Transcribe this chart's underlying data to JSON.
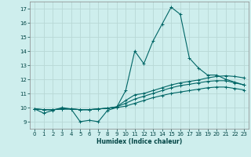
{
  "xlabel": "Humidex (Indice chaleur)",
  "xlim": [
    -0.5,
    23.5
  ],
  "ylim": [
    8.5,
    17.5
  ],
  "yticks": [
    9,
    10,
    11,
    12,
    13,
    14,
    15,
    16,
    17
  ],
  "xticks": [
    0,
    1,
    2,
    3,
    4,
    5,
    6,
    7,
    8,
    9,
    10,
    11,
    12,
    13,
    14,
    15,
    16,
    17,
    18,
    19,
    20,
    21,
    22,
    23
  ],
  "bg_color": "#ceeeed",
  "grid_color": "#b8d8d6",
  "line_color": "#006666",
  "line1_y": [
    9.9,
    9.6,
    9.8,
    10.0,
    9.9,
    9.0,
    9.1,
    9.0,
    9.8,
    10.0,
    11.2,
    14.0,
    13.1,
    14.7,
    15.9,
    17.1,
    16.6,
    13.5,
    12.8,
    12.3,
    12.3,
    12.0,
    11.8,
    11.6
  ],
  "line2_y": [
    9.9,
    9.85,
    9.85,
    9.9,
    9.9,
    9.85,
    9.85,
    9.9,
    9.95,
    10.05,
    10.5,
    10.9,
    11.0,
    11.2,
    11.4,
    11.6,
    11.75,
    11.85,
    11.95,
    12.1,
    12.2,
    12.25,
    12.2,
    12.1
  ],
  "line3_y": [
    9.9,
    9.85,
    9.85,
    9.9,
    9.9,
    9.85,
    9.85,
    9.9,
    9.95,
    10.05,
    10.3,
    10.6,
    10.8,
    11.0,
    11.2,
    11.4,
    11.55,
    11.65,
    11.75,
    11.85,
    11.9,
    11.9,
    11.75,
    11.6
  ],
  "line4_y": [
    9.9,
    9.85,
    9.85,
    9.9,
    9.9,
    9.85,
    9.85,
    9.9,
    9.95,
    10.0,
    10.1,
    10.3,
    10.5,
    10.7,
    10.85,
    11.0,
    11.1,
    11.2,
    11.3,
    11.4,
    11.45,
    11.45,
    11.35,
    11.25
  ]
}
